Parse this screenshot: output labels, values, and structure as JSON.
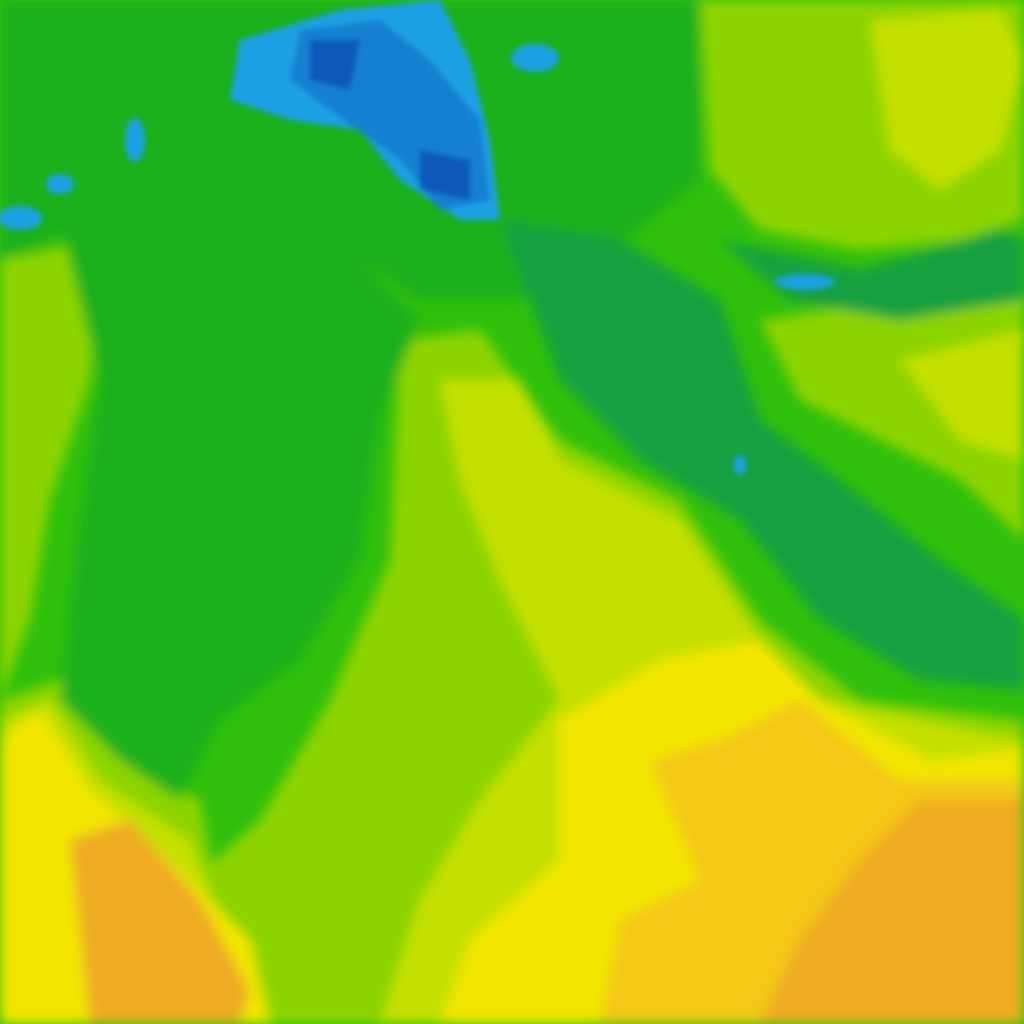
{
  "map": {
    "type": "weather-contour-tile",
    "palette": {
      "base_green": "#30c00c",
      "dark_green": "#1cb01c",
      "teal_green": "#14a040",
      "lime": "#8cd400",
      "yellow_green": "#c4e000",
      "yellow": "#f2e600",
      "orange_light": "#f4c818",
      "orange": "#eeac20",
      "light_blue": "#1aa0e4",
      "blue": "#1480d0",
      "dark_blue": "#1058b8"
    }
  }
}
